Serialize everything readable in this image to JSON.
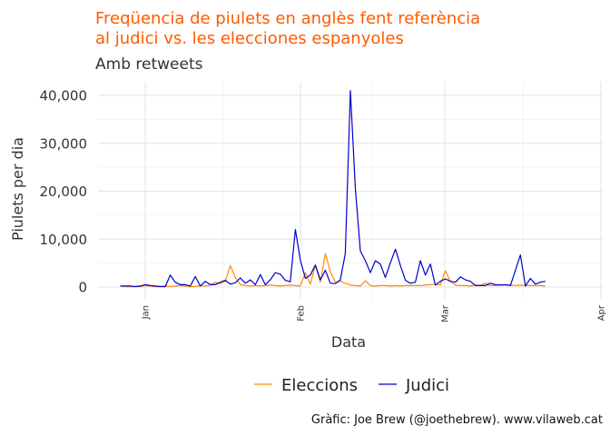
{
  "chart_data": {
    "type": "line",
    "title_line1": "Freqüencia de piulets en anglès fent referència",
    "title_line2": "al judici vs. les elecciones espanyoles",
    "subtitle": "Amb retweets",
    "xlabel": "Data",
    "ylabel": "Piulets per dia",
    "caption": "Gràfic: Joe Brew (@joethebrew). www.vilaweb.cat",
    "y_ticks": [
      "0",
      "10,000",
      "20,000",
      "30,000",
      "40,000"
    ],
    "x_ticks": [
      "Jan",
      "Feb",
      "Mar",
      "Apr"
    ],
    "ylim": [
      -2000,
      43000
    ],
    "grid": true,
    "legend_position": "bottom",
    "colors": {
      "Eleccions": "#ff8c00",
      "Judici": "#0000cc",
      "title": "#ff5a00"
    },
    "series": [
      {
        "name": "Eleccions",
        "values": [
          200,
          100,
          50,
          100,
          100,
          300,
          200,
          100,
          100,
          200,
          100,
          200,
          300,
          200,
          100,
          100,
          300,
          200,
          400,
          1000,
          700,
          1200,
          4500,
          2000,
          500,
          300,
          200,
          300,
          200,
          300,
          400,
          300,
          200,
          300,
          400,
          300,
          200,
          3000,
          600,
          4500,
          1000,
          7000,
          3200,
          1000,
          1200,
          800,
          400,
          300,
          200,
          1300,
          300,
          200,
          300,
          300,
          200,
          300,
          200,
          300,
          300,
          300,
          300,
          400,
          500,
          600,
          400,
          3400,
          1200,
          400,
          300,
          300,
          200,
          400,
          300,
          800,
          300,
          300,
          500,
          400,
          400,
          300,
          400,
          300,
          300,
          300,
          300,
          200
        ]
      },
      {
        "name": "Judici",
        "values": [
          200,
          200,
          200,
          100,
          200,
          500,
          300,
          200,
          100,
          100,
          2500,
          1000,
          500,
          500,
          200,
          2200,
          200,
          1200,
          500,
          500,
          1000,
          1400,
          600,
          900,
          1900,
          800,
          1500,
          500,
          2600,
          500,
          1500,
          3000,
          2700,
          1400,
          1100,
          12000,
          5600,
          1800,
          2500,
          4600,
          1500,
          3500,
          800,
          700,
          1500,
          7000,
          41000,
          20500,
          7500,
          5500,
          3000,
          5500,
          4800,
          2000,
          5000,
          7900,
          4500,
          1400,
          800,
          1000,
          5500,
          2500,
          4800,
          400,
          1200,
          1700,
          1200,
          1000,
          2100,
          1500,
          1200,
          300,
          300,
          300,
          800,
          500,
          400,
          500,
          300,
          3500,
          6700,
          200,
          1800,
          600,
          1000,
          1200
        ]
      }
    ]
  }
}
